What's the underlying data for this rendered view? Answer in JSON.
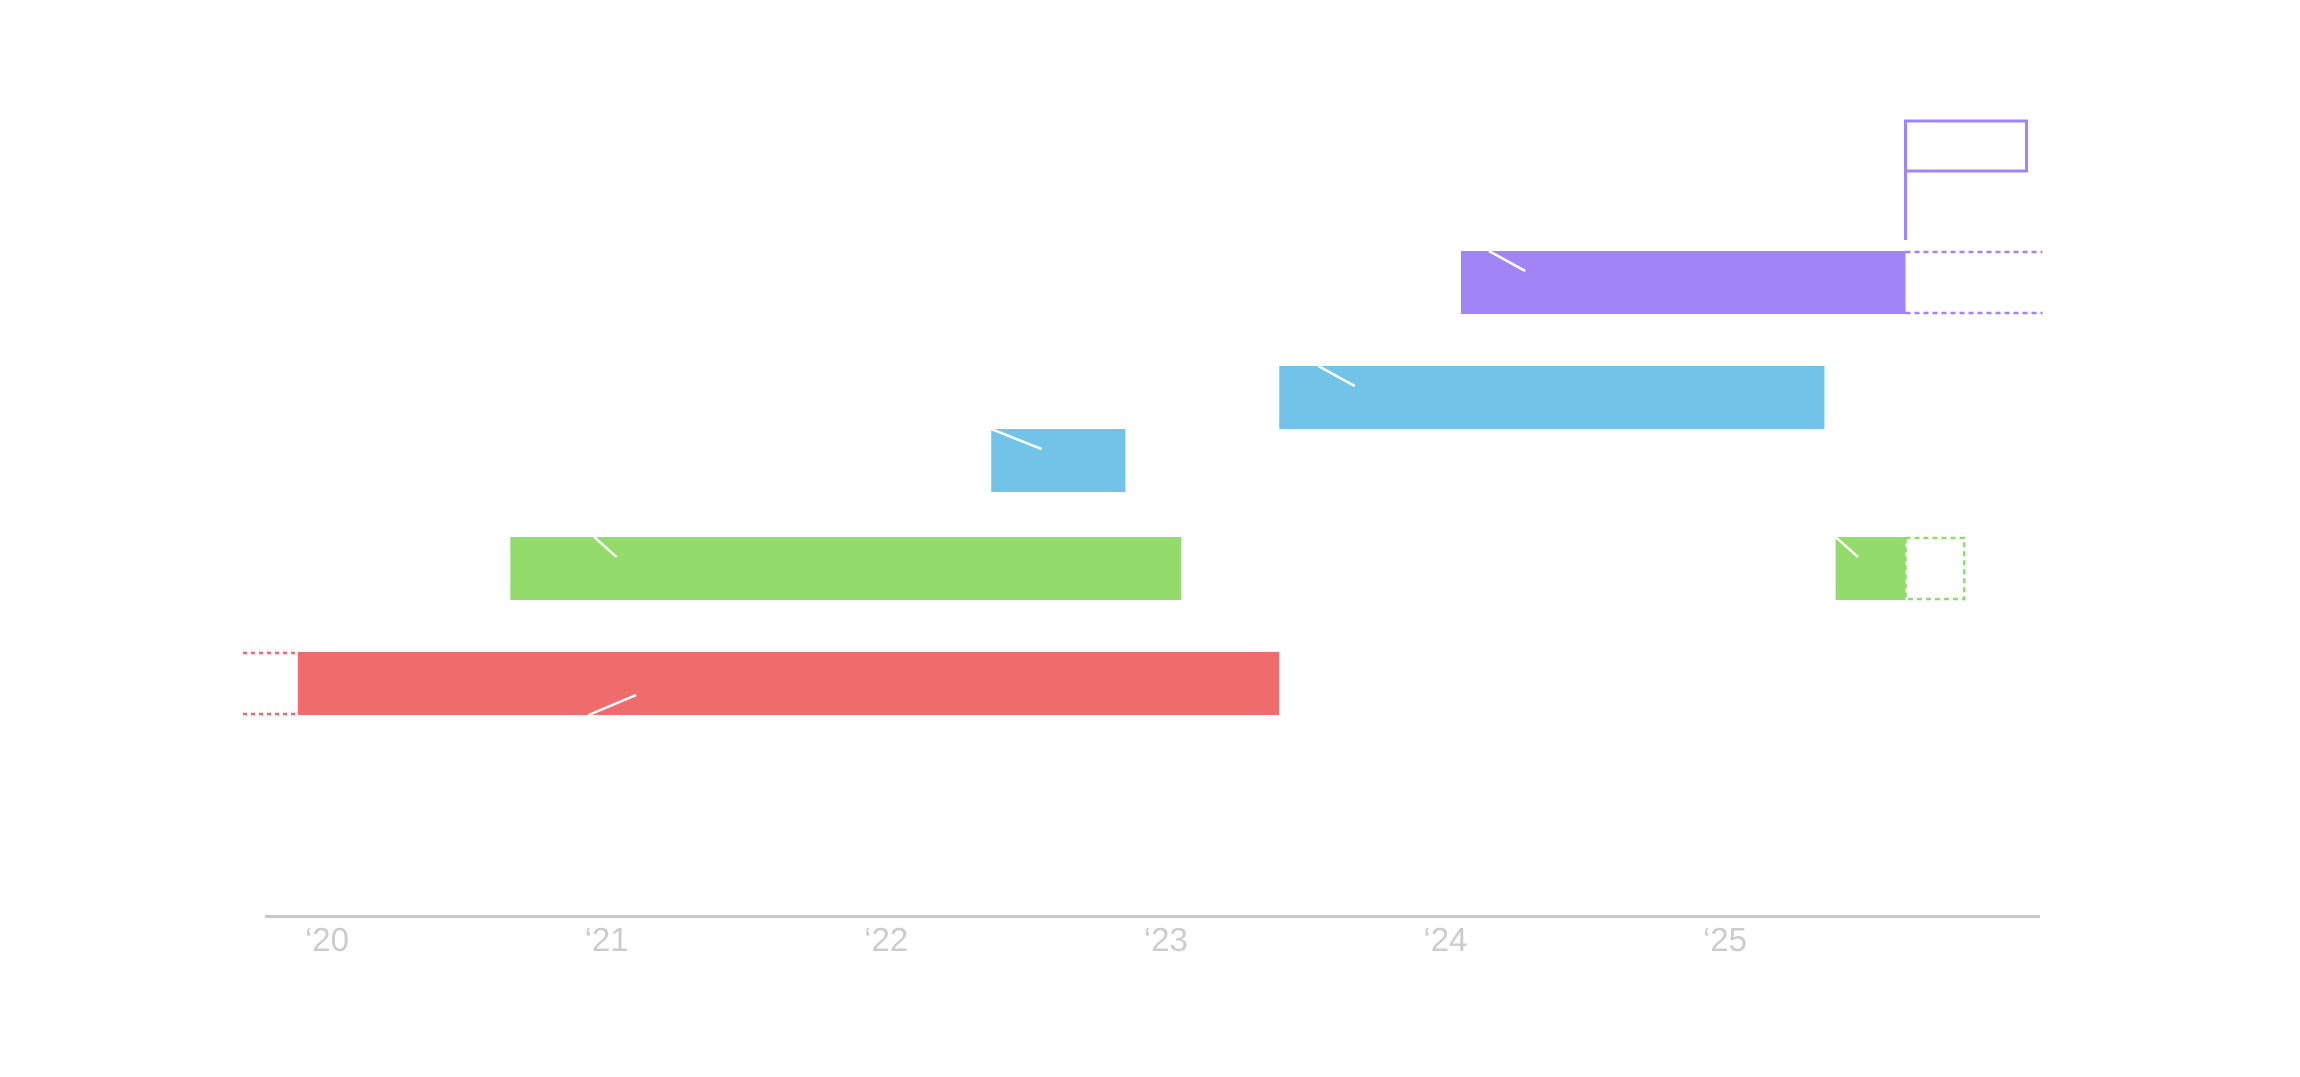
{
  "chart_data": {
    "type": "bar",
    "orientation": "horizontal",
    "x_axis": {
      "ticks": [
        {
          "year": 2020,
          "label": "‘20"
        },
        {
          "year": 2021,
          "label": "‘21"
        },
        {
          "year": 2022,
          "label": "‘22"
        },
        {
          "year": 2023,
          "label": "‘23"
        },
        {
          "year": 2024,
          "label": "‘24"
        },
        {
          "year": 2025,
          "label": "‘25"
        }
      ],
      "range": [
        2019.8,
        2026.1
      ]
    },
    "colors": {
      "axis": "#c8c8c8",
      "tick_text": "#cccccc",
      "red": "#f06b6b",
      "green": "#93db6a",
      "blue": "#72c3e8",
      "purple": "#a185f7"
    },
    "periods": [
      {
        "lane": 0,
        "start": 2019.96,
        "end": 2023.47,
        "color": "red",
        "open_start": true,
        "open_end": false,
        "accent_from": 2021.0,
        "accent_to": 2021.17,
        "accent": "up"
      },
      {
        "lane": 1,
        "start": 2020.72,
        "end": 2023.12,
        "color": "green",
        "open_start": false,
        "open_end": false,
        "accent_from": 2021.02,
        "accent_to": 2021.1,
        "accent": "down"
      },
      {
        "lane": 1,
        "start": 2025.46,
        "end": 2025.71,
        "color": "green",
        "open_start": false,
        "open_end": true,
        "open_to": 2025.92,
        "accent_from": 2025.46,
        "accent_to": 2025.54,
        "accent": "down"
      },
      {
        "lane": 2,
        "start": 2022.44,
        "end": 2022.92,
        "color": "blue",
        "open_start": false,
        "open_end": false,
        "accent_from": 2022.44,
        "accent_to": 2022.62,
        "accent": "down"
      },
      {
        "lane": 3,
        "start": 2023.47,
        "end": 2025.42,
        "color": "blue",
        "open_start": false,
        "open_end": false,
        "accent_from": 2023.61,
        "accent_to": 2023.74,
        "accent": "down"
      },
      {
        "lane": 4,
        "start": 2024.12,
        "end": 2025.71,
        "color": "purple",
        "open_start": false,
        "open_end": true,
        "open_to": 2026.2,
        "accent_from": 2024.22,
        "accent_to": 2024.35,
        "accent": "down"
      }
    ],
    "marker": {
      "type": "flag",
      "x": 2025.71,
      "color": "purple"
    }
  }
}
